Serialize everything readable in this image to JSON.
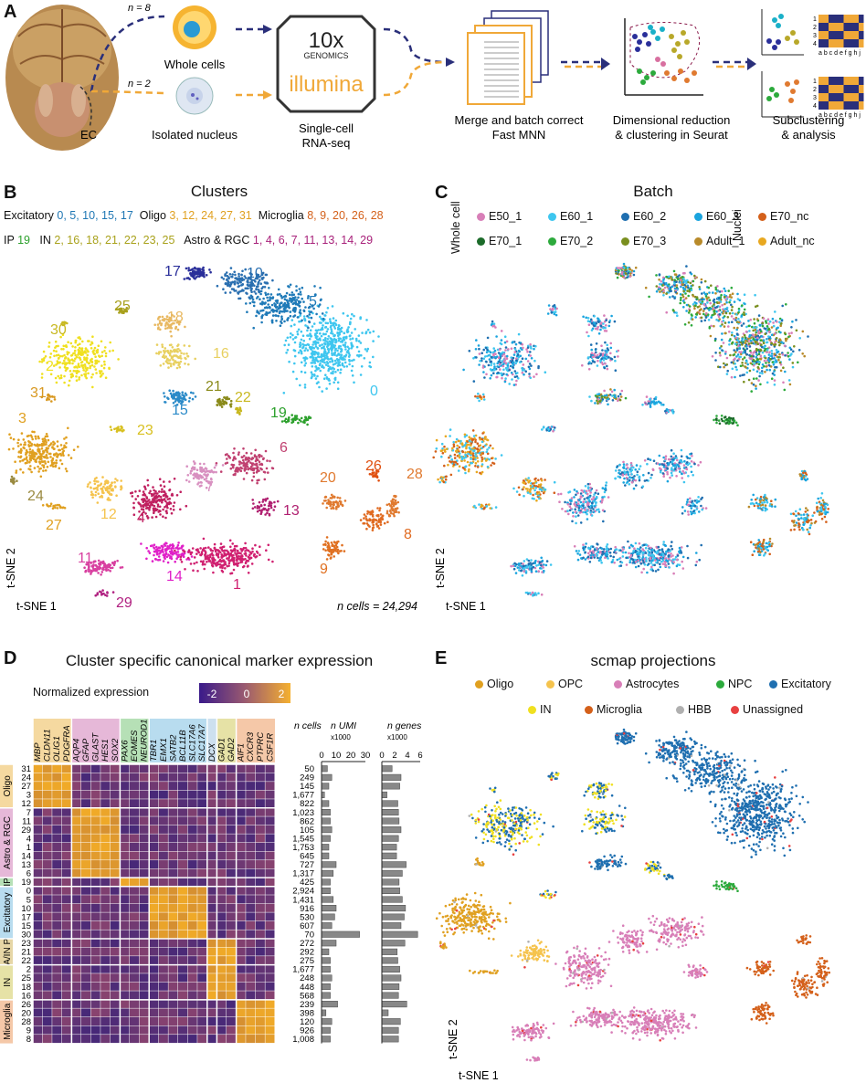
{
  "panelA": {
    "label": "A",
    "n_whole": "n = 8",
    "n_nuc": "n = 2",
    "ec": "EC",
    "whole_cells": "Whole cells",
    "isolated_nucleus": "Isolated nucleus",
    "genomics_top": "10x",
    "genomics_sub": "GENOMICS",
    "illumina": "illumina",
    "step_seq": [
      "Single-cell",
      "RNA-seq"
    ],
    "step_merge": [
      "Merge and batch correct",
      "Fast MNN"
    ],
    "step_dim": [
      "Dimensional reduction",
      "& clustering in Seurat"
    ],
    "step_sub": [
      "Subclustering",
      "& analysis"
    ],
    "matrix_rows": [
      "1",
      "2",
      "3",
      "4"
    ],
    "matrix_cols": "a b c d e f g h j"
  },
  "panelB": {
    "label": "B",
    "title": "Clusters",
    "legend": [
      {
        "name": "Excitatory",
        "ids": "0, 5, 10, 15, 17",
        "color": "#1f77b4"
      },
      {
        "name": "Oligo",
        "ids": "3, 12, 24, 27, 31",
        "color": "#e0a020"
      },
      {
        "name": "Microglia",
        "ids": "8, 9, 20, 26, 28",
        "color": "#d4601a"
      },
      {
        "name": "IP",
        "ids": "19",
        "color": "#2ca02c"
      },
      {
        "name": "IN",
        "ids": "2, 16, 18, 21, 22, 23, 25",
        "color": "#a9a21c"
      },
      {
        "name": "Astro & RGC",
        "ids": "1, 4, 6, 7, 11, 13, 14, 29",
        "color": "#a8217a"
      }
    ],
    "axis_y": "t-SNE 2",
    "axis_x": "t-SNE 1",
    "ncells": "n cells = 24,294"
  },
  "panelC": {
    "label": "C",
    "title": "Batch",
    "whole_cell": "Whole cell",
    "nuclei": "Nuclei",
    "items": [
      {
        "name": "E50_1",
        "color": "#d87fb8"
      },
      {
        "name": "E60_1",
        "color": "#3ec6ef"
      },
      {
        "name": "E60_2",
        "color": "#1f6fb0"
      },
      {
        "name": "E60_3",
        "color": "#1aa4de"
      },
      {
        "name": "E70_1",
        "color": "#1c6b2a"
      },
      {
        "name": "E70_2",
        "color": "#2caa3c"
      },
      {
        "name": "E70_3",
        "color": "#7a8f1f"
      },
      {
        "name": "Adult_1",
        "color": "#b88a2a"
      },
      {
        "name": "E70_nc",
        "color": "#d4601a"
      },
      {
        "name": "Adult_nc",
        "color": "#e8a820"
      }
    ],
    "axis_y": "t-SNE 2",
    "axis_x": "t-SNE 1"
  },
  "panelD": {
    "label": "D",
    "title": "Cluster specific canonical marker expression",
    "norm_label": "Normalized expression",
    "scale_ticks": [
      "-2",
      "0",
      "2"
    ],
    "genes": [
      "MBP",
      "CLDN11",
      "OLIG1",
      "PDGFRA",
      "AQP4",
      "GFAP",
      "GLAST",
      "HES1",
      "SOX2",
      "PAX6",
      "EOMES",
      "NEUROD1",
      "TBR1",
      "EMX1",
      "SATB2",
      "BCL11B",
      "SLC17A6",
      "SLC17A7",
      "DCX",
      "GAD1",
      "GAD2",
      "AIF1",
      "CXCR3",
      "PTPRC",
      "CSF1R"
    ],
    "col_head_ncells": "n cells",
    "col_head_umi": "n UMI",
    "col_head_umi_sub": "x1000",
    "col_head_genes": "n genes",
    "col_head_genes_sub": "x1000",
    "umi_ticks": [
      "0",
      "10",
      "20",
      "30"
    ],
    "genes_ticks": [
      "0",
      "2",
      "4",
      "6"
    ],
    "groups": [
      "Oligo",
      "Astro & RGC",
      "IP",
      "Excitatory",
      "A/IN P",
      "IN",
      "Microglia"
    ],
    "rows": [
      {
        "c": "31",
        "n": "50",
        "umi": 4,
        "gen": 1.6
      },
      {
        "c": "24",
        "n": "249",
        "umi": 7,
        "gen": 3.0
      },
      {
        "c": "27",
        "n": "145",
        "umi": 5,
        "gen": 2.8
      },
      {
        "c": "3",
        "n": "1,677",
        "umi": 2,
        "gen": 0.8
      },
      {
        "c": "12",
        "n": "822",
        "umi": 5,
        "gen": 2.5
      },
      {
        "c": "7",
        "n": "1,023",
        "umi": 6,
        "gen": 2.6
      },
      {
        "c": "11",
        "n": "862",
        "umi": 6,
        "gen": 2.7
      },
      {
        "c": "29",
        "n": "105",
        "umi": 7,
        "gen": 3.0
      },
      {
        "c": "4",
        "n": "1,545",
        "umi": 6,
        "gen": 2.6
      },
      {
        "c": "1",
        "n": "1,753",
        "umi": 5,
        "gen": 2.3
      },
      {
        "c": "14",
        "n": "645",
        "umi": 5,
        "gen": 2.3
      },
      {
        "c": "13",
        "n": "727",
        "umi": 10,
        "gen": 3.8
      },
      {
        "c": "6",
        "n": "1,317",
        "umi": 8,
        "gen": 3.2
      },
      {
        "c": "19",
        "n": "425",
        "umi": 6,
        "gen": 2.7
      },
      {
        "c": "0",
        "n": "2,924",
        "umi": 6,
        "gen": 2.8
      },
      {
        "c": "5",
        "n": "1,431",
        "umi": 8,
        "gen": 3.2
      },
      {
        "c": "10",
        "n": "916",
        "umi": 10,
        "gen": 3.7
      },
      {
        "c": "17",
        "n": "530",
        "umi": 9,
        "gen": 3.5
      },
      {
        "c": "15",
        "n": "607",
        "umi": 7,
        "gen": 3.0
      },
      {
        "c": "30",
        "n": "70",
        "umi": 26,
        "gen": 5.6
      },
      {
        "c": "23",
        "n": "272",
        "umi": 10,
        "gen": 3.6
      },
      {
        "c": "21",
        "n": "292",
        "umi": 5,
        "gen": 2.4
      },
      {
        "c": "22",
        "n": "275",
        "umi": 6,
        "gen": 2.5
      },
      {
        "c": "2",
        "n": "1,677",
        "umi": 6,
        "gen": 2.8
      },
      {
        "c": "25",
        "n": "248",
        "umi": 7,
        "gen": 3.0
      },
      {
        "c": "18",
        "n": "448",
        "umi": 6,
        "gen": 2.7
      },
      {
        "c": "16",
        "n": "568",
        "umi": 6,
        "gen": 2.6
      },
      {
        "c": "26",
        "n": "239",
        "umi": 11,
        "gen": 3.9
      },
      {
        "c": "20",
        "n": "398",
        "umi": 3,
        "gen": 1.0
      },
      {
        "c": "28",
        "n": "120",
        "umi": 7,
        "gen": 2.9
      },
      {
        "c": "9",
        "n": "926",
        "umi": 6,
        "gen": 2.6
      },
      {
        "c": "8",
        "n": "1,008",
        "umi": 6,
        "gen": 2.6
      }
    ]
  },
  "panelE": {
    "label": "E",
    "title": "scmap projections",
    "items": [
      {
        "name": "Oligo",
        "color": "#e0a020"
      },
      {
        "name": "OPC",
        "color": "#f5c34d"
      },
      {
        "name": "Astrocytes",
        "color": "#d87fb8"
      },
      {
        "name": "NPC",
        "color": "#2caa3c"
      },
      {
        "name": "Excitatory",
        "color": "#1f6fb0"
      },
      {
        "name": "IN",
        "color": "#f0e020"
      },
      {
        "name": "Microglia",
        "color": "#d4601a"
      },
      {
        "name": "HBB",
        "color": "#b0b0b0"
      },
      {
        "name": "Unassigned",
        "color": "#e84040"
      }
    ],
    "axis_y": "t-SNE 2",
    "axis_x": "t-SNE 1"
  }
}
